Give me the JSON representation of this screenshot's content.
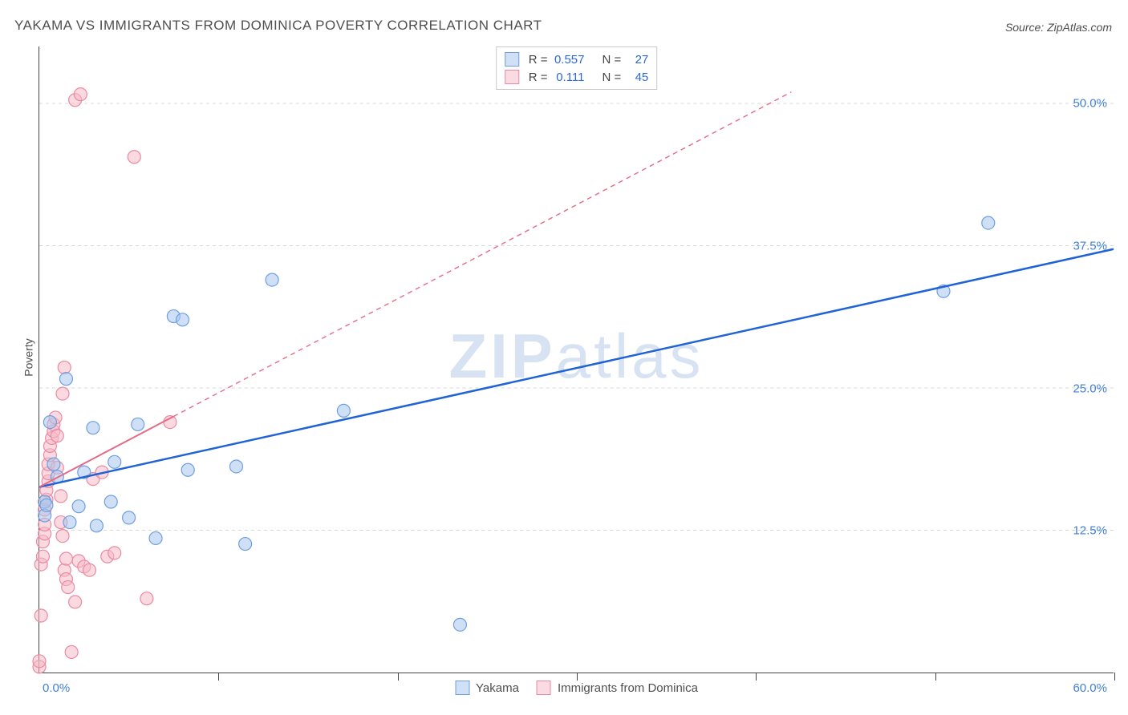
{
  "title": "YAKAMA VS IMMIGRANTS FROM DOMINICA POVERTY CORRELATION CHART",
  "source_label": "Source:",
  "source_value": "ZipAtlas.com",
  "ylabel": "Poverty",
  "watermark": "ZIPatlas",
  "chart": {
    "type": "scatter",
    "xlim": [
      0,
      60
    ],
    "ylim": [
      0,
      55
    ],
    "x_tick_labels": {
      "min": "0.0%",
      "max": "60.0%"
    },
    "y_gridlines": [
      12.5,
      25.0,
      37.5,
      50.0
    ],
    "y_tick_labels": [
      "12.5%",
      "25.0%",
      "37.5%",
      "50.0%"
    ],
    "x_minor_ticks": [
      10,
      20,
      30,
      40,
      50,
      60
    ],
    "grid_color": "#d8d8d8",
    "axis_color": "#444444",
    "background_color": "#ffffff",
    "marker_radius": 8,
    "marker_opacity": 0.55,
    "series": [
      {
        "name": "Yakama",
        "color_fill": "#a8c6ee",
        "color_stroke": "#6f9fde",
        "swatch_fill": "#cfe0f7",
        "swatch_stroke": "#6f9fde",
        "R": "0.557",
        "N": "27",
        "trend": {
          "x1": 0,
          "y1": 16.3,
          "x2": 60,
          "y2": 37.2,
          "stroke": "#1f63d6",
          "width": 2.5,
          "dash": "none",
          "extend_x1": 0,
          "extend_y1": 16.3,
          "extend_x2": 60,
          "extend_y2": 37.2
        },
        "points": [
          [
            0.3,
            15.0
          ],
          [
            0.3,
            13.8
          ],
          [
            0.4,
            14.7
          ],
          [
            0.6,
            22.0
          ],
          [
            0.8,
            18.3
          ],
          [
            1.0,
            17.2
          ],
          [
            1.5,
            25.8
          ],
          [
            1.7,
            13.2
          ],
          [
            2.2,
            14.6
          ],
          [
            2.5,
            17.6
          ],
          [
            3.0,
            21.5
          ],
          [
            3.2,
            12.9
          ],
          [
            4.0,
            15.0
          ],
          [
            4.2,
            18.5
          ],
          [
            5.0,
            13.6
          ],
          [
            5.5,
            21.8
          ],
          [
            6.5,
            11.8
          ],
          [
            7.5,
            31.3
          ],
          [
            8.3,
            17.8
          ],
          [
            8.0,
            31.0
          ],
          [
            11.0,
            18.1
          ],
          [
            11.5,
            11.3
          ],
          [
            13.0,
            34.5
          ],
          [
            17.0,
            23.0
          ],
          [
            23.5,
            4.2
          ],
          [
            50.5,
            33.5
          ],
          [
            53.0,
            39.5
          ]
        ]
      },
      {
        "name": "Immigrants from Dominica",
        "color_fill": "#f5b9c6",
        "color_stroke": "#ea8aa2",
        "swatch_fill": "#fadbe3",
        "swatch_stroke": "#ea8aa2",
        "R": "0.111",
        "N": "45",
        "trend": {
          "x1": 0,
          "y1": 16.3,
          "x2": 7.5,
          "y2": 22.5,
          "stroke": "#e56a88",
          "width": 2,
          "dash": "none",
          "extend_x1": 7.5,
          "extend_y1": 22.5,
          "extend_x2": 42,
          "extend_y2": 51.0,
          "extend_dash": "6 5"
        },
        "points": [
          [
            0.0,
            0.5
          ],
          [
            0.0,
            1.0
          ],
          [
            0.1,
            5.0
          ],
          [
            0.1,
            9.5
          ],
          [
            0.2,
            10.2
          ],
          [
            0.2,
            11.5
          ],
          [
            0.3,
            12.2
          ],
          [
            0.3,
            13.0
          ],
          [
            0.3,
            14.3
          ],
          [
            0.4,
            15.2
          ],
          [
            0.4,
            16.0
          ],
          [
            0.5,
            16.8
          ],
          [
            0.5,
            17.5
          ],
          [
            0.5,
            18.3
          ],
          [
            0.6,
            19.1
          ],
          [
            0.6,
            19.9
          ],
          [
            0.7,
            20.6
          ],
          [
            0.8,
            21.2
          ],
          [
            0.8,
            21.8
          ],
          [
            0.9,
            22.4
          ],
          [
            1.0,
            20.8
          ],
          [
            1.0,
            18.0
          ],
          [
            1.2,
            15.5
          ],
          [
            1.2,
            13.2
          ],
          [
            1.3,
            12.0
          ],
          [
            1.3,
            24.5
          ],
          [
            1.4,
            26.8
          ],
          [
            1.4,
            9.0
          ],
          [
            1.5,
            10.0
          ],
          [
            1.5,
            8.2
          ],
          [
            1.6,
            7.5
          ],
          [
            1.8,
            1.8
          ],
          [
            2.0,
            6.2
          ],
          [
            2.2,
            9.8
          ],
          [
            2.5,
            9.3
          ],
          [
            2.8,
            9.0
          ],
          [
            2.0,
            50.3
          ],
          [
            2.3,
            50.8
          ],
          [
            3.0,
            17.0
          ],
          [
            3.5,
            17.6
          ],
          [
            3.8,
            10.2
          ],
          [
            4.2,
            10.5
          ],
          [
            5.3,
            45.3
          ],
          [
            6.0,
            6.5
          ],
          [
            7.3,
            22.0
          ]
        ]
      }
    ],
    "legend_bottom": [
      {
        "swatch_fill": "#cfe0f7",
        "swatch_stroke": "#6f9fde",
        "label": "Yakama"
      },
      {
        "swatch_fill": "#fadbe3",
        "swatch_stroke": "#ea8aa2",
        "label": "Immigrants from Dominica"
      }
    ]
  }
}
